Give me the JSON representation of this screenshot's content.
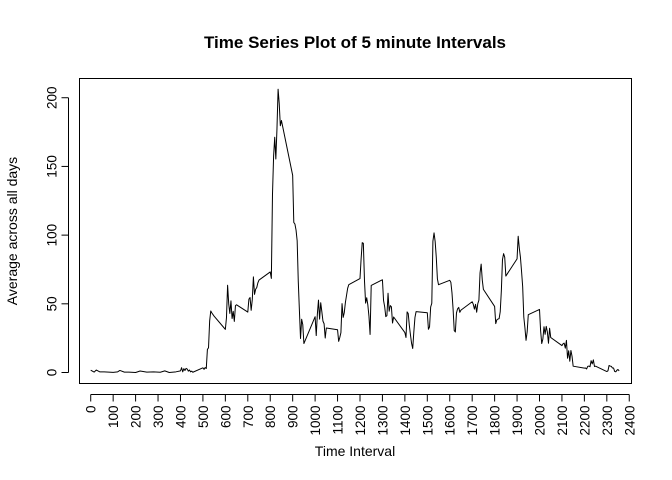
{
  "chart_data": {
    "type": "line",
    "title": "Time Series Plot of 5 minute Intervals",
    "xlabel": "Time Interval",
    "ylabel": "Average across all days",
    "xlim": [
      -50,
      2410
    ],
    "ylim": [
      -8,
      214
    ],
    "x_ticks": [
      0,
      100,
      200,
      300,
      400,
      500,
      600,
      700,
      800,
      900,
      1000,
      1100,
      1200,
      1300,
      1400,
      1500,
      1600,
      1700,
      1800,
      1900,
      2000,
      2100,
      2200,
      2300,
      2400
    ],
    "x_tick_labels": [
      "0",
      "100",
      "200",
      "300",
      "400",
      "500",
      "600",
      "700",
      "800",
      "900",
      "1000",
      "1100",
      "1200",
      "1300",
      "1400",
      "1500",
      "1600",
      "1700",
      "1800",
      "1900",
      "2000",
      "2100",
      "2200",
      "2300",
      "2400"
    ],
    "y_ticks": [
      0,
      50,
      100,
      150,
      200
    ],
    "y_tick_labels": [
      "0",
      "50",
      "100",
      "150",
      "200"
    ],
    "grid": false,
    "series": [
      {
        "color": "#000000",
        "x": [
          0,
          15,
          25,
          40,
          60,
          80,
          100,
          120,
          130,
          150,
          170,
          200,
          220,
          250,
          280,
          310,
          330,
          350,
          380,
          400,
          405,
          410,
          415,
          420,
          425,
          430,
          435,
          440,
          445,
          450,
          455,
          500,
          505,
          510,
          515,
          520,
          525,
          530,
          535,
          540,
          550,
          600,
          605,
          610,
          615,
          620,
          625,
          630,
          635,
          640,
          645,
          650,
          700,
          705,
          710,
          715,
          720,
          725,
          730,
          735,
          740,
          745,
          750,
          800,
          805,
          810,
          815,
          820,
          825,
          830,
          835,
          840,
          845,
          850,
          900,
          905,
          910,
          915,
          920,
          925,
          930,
          935,
          940,
          945,
          950,
          1000,
          1005,
          1010,
          1015,
          1020,
          1025,
          1030,
          1035,
          1040,
          1045,
          1050,
          1100,
          1105,
          1110,
          1115,
          1120,
          1125,
          1130,
          1135,
          1140,
          1145,
          1150,
          1200,
          1205,
          1210,
          1215,
          1220,
          1225,
          1230,
          1235,
          1240,
          1245,
          1250,
          1300,
          1305,
          1310,
          1315,
          1320,
          1325,
          1330,
          1335,
          1340,
          1345,
          1350,
          1400,
          1405,
          1410,
          1415,
          1420,
          1425,
          1430,
          1435,
          1440,
          1445,
          1450,
          1500,
          1505,
          1510,
          1515,
          1520,
          1525,
          1530,
          1535,
          1540,
          1545,
          1550,
          1600,
          1605,
          1610,
          1615,
          1620,
          1625,
          1630,
          1635,
          1640,
          1645,
          1650,
          1700,
          1705,
          1710,
          1715,
          1720,
          1725,
          1730,
          1735,
          1740,
          1745,
          1750,
          1800,
          1805,
          1810,
          1815,
          1820,
          1825,
          1830,
          1835,
          1840,
          1845,
          1850,
          1900,
          1905,
          1910,
          1915,
          1920,
          1925,
          1930,
          1935,
          1940,
          1945,
          1950,
          2000,
          2005,
          2010,
          2015,
          2020,
          2025,
          2030,
          2035,
          2040,
          2045,
          2050,
          2100,
          2105,
          2110,
          2115,
          2120,
          2125,
          2130,
          2135,
          2140,
          2145,
          2150,
          2200,
          2205,
          2210,
          2215,
          2220,
          2225,
          2230,
          2235,
          2240,
          2245,
          2250,
          2300,
          2305,
          2310,
          2315,
          2320,
          2325,
          2330,
          2335,
          2340,
          2345,
          2350,
          2355
        ],
        "y": [
          1.7,
          0.3,
          1.8,
          0.5,
          0.5,
          0.3,
          0.1,
          0.5,
          1.5,
          0.3,
          0.3,
          0,
          1.1,
          0.3,
          0.5,
          0.2,
          1.2,
          0,
          0.5,
          1.2,
          3.5,
          0.5,
          2.8,
          1.5,
          3,
          2.5,
          1,
          1.8,
          0.5,
          1,
          0.2,
          3.4,
          2.3,
          3.6,
          2.9,
          16.8,
          18,
          37.5,
          44.8,
          43.3,
          41,
          31.4,
          40,
          63.5,
          49.9,
          43,
          52.1,
          39.3,
          44.5,
          37.2,
          48.7,
          49.3,
          44,
          53.4,
          54.6,
          45.3,
          53,
          69.6,
          56.9,
          60.6,
          61.9,
          65.3,
          67.3,
          73.2,
          68.5,
          129.4,
          157.5,
          171.2,
          155.4,
          177.3,
          206.2,
          195.9,
          179.6,
          183.4,
          143.5,
          109.2,
          108.1,
          103.7,
          95.9,
          66.2,
          45.2,
          24.8,
          38.8,
          34.9,
          21.1,
          40.6,
          26.9,
          42.4,
          52.7,
          38.9,
          50.8,
          44.3,
          37.4,
          35.5,
          25.1,
          32.4,
          31.1,
          22.7,
          25.5,
          29,
          50.1,
          40.1,
          43.6,
          51,
          56.1,
          61.3,
          63.9,
          68.4,
          82.7,
          94.5,
          94,
          66.9,
          50.5,
          54.4,
          49.2,
          40.9,
          27.7,
          63.4,
          67.5,
          52.4,
          47.9,
          40.7,
          41.4,
          57.7,
          44.6,
          48.7,
          47.8,
          36,
          40.4,
          29.1,
          25.5,
          44.1,
          42.9,
          34.2,
          27.3,
          21.1,
          17.5,
          29.6,
          40.1,
          44.3,
          43.5,
          31.5,
          33.2,
          47.7,
          50.4,
          95.6,
          101.6,
          95.3,
          83.8,
          68.2,
          63.9,
          67.1,
          65.6,
          57.9,
          45.9,
          30.5,
          29.5,
          43.4,
          46.4,
          47.4,
          43.8,
          45.4,
          51.5,
          49.6,
          46.1,
          49.6,
          43.9,
          50.1,
          52.7,
          72.5,
          78.9,
          67.3,
          60.5,
          48.1,
          35.6,
          38.4,
          38.9,
          39.2,
          44.3,
          59.5,
          82.2,
          86.5,
          83.9,
          70.2,
          82.7,
          99.2,
          90.5,
          83.9,
          73.6,
          62.5,
          40.4,
          32.6,
          23.4,
          29.5,
          42.1,
          45.9,
          30.3,
          21.1,
          24.4,
          33.3,
          27.8,
          33.6,
          29.6,
          21.3,
          32.2,
          25.5,
          19.6,
          20.9,
          21.4,
          17.7,
          23.4,
          10.4,
          15.8,
          8.2,
          16,
          11.8,
          4.6,
          3.2,
          3.3,
          2.6,
          4.5,
          4.7,
          4.2,
          8.6,
          6.3,
          9.2,
          4.4,
          4.6,
          0.7,
          1.2,
          5.1,
          4.7,
          4.5,
          3.3,
          3.3,
          0.8,
          0.5,
          1.7,
          2.2,
          1.1
        ]
      }
    ]
  }
}
